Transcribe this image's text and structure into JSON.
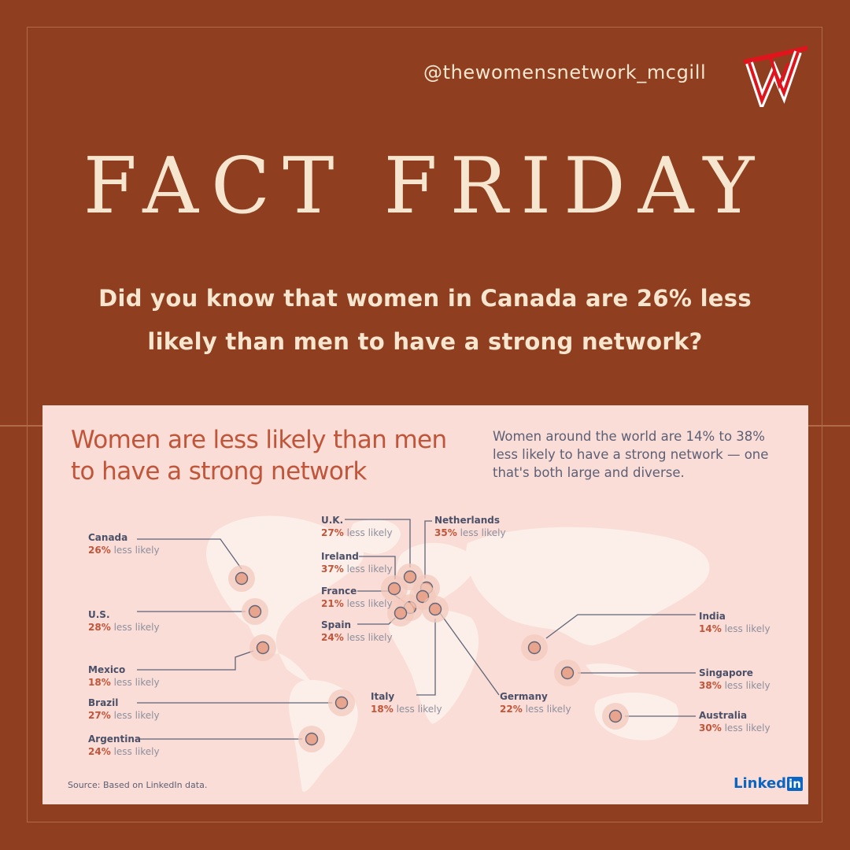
{
  "handle": "@thewomensnetwork_mcgill",
  "title": "FACT FRIDAY",
  "question": "Did you know that women in Canada are 26% less likely than men to have a strong network?",
  "infographic": {
    "heading": "Women are less likely than men to have a strong network",
    "subtext": "Women around the world are 14% to 38% less likely to have a strong network — one that's both large and diverse.",
    "less_likely_text": "less likely",
    "countries": [
      {
        "name": "Canada",
        "pct": "26%"
      },
      {
        "name": "U.S.",
        "pct": "28%"
      },
      {
        "name": "Mexico",
        "pct": "18%"
      },
      {
        "name": "Brazil",
        "pct": "27%"
      },
      {
        "name": "Argentina",
        "pct": "24%"
      },
      {
        "name": "U.K.",
        "pct": "27%"
      },
      {
        "name": "Ireland",
        "pct": "37%"
      },
      {
        "name": "France",
        "pct": "21%"
      },
      {
        "name": "Spain",
        "pct": "24%"
      },
      {
        "name": "Netherlands",
        "pct": "35%"
      },
      {
        "name": "Italy",
        "pct": "18%"
      },
      {
        "name": "Germany",
        "pct": "22%"
      },
      {
        "name": "India",
        "pct": "14%"
      },
      {
        "name": "Singapore",
        "pct": "38%"
      },
      {
        "name": "Australia",
        "pct": "30%"
      }
    ],
    "source": "Source: Based on LinkedIn data.",
    "linkedin_word": "Linked",
    "linkedin_in": "in"
  },
  "colors": {
    "background": "#8f3f1f",
    "cream": "#f6e6cf",
    "panel": "#f9ddd6",
    "accent": "#c0553a",
    "linkedin": "#0a66c2"
  }
}
